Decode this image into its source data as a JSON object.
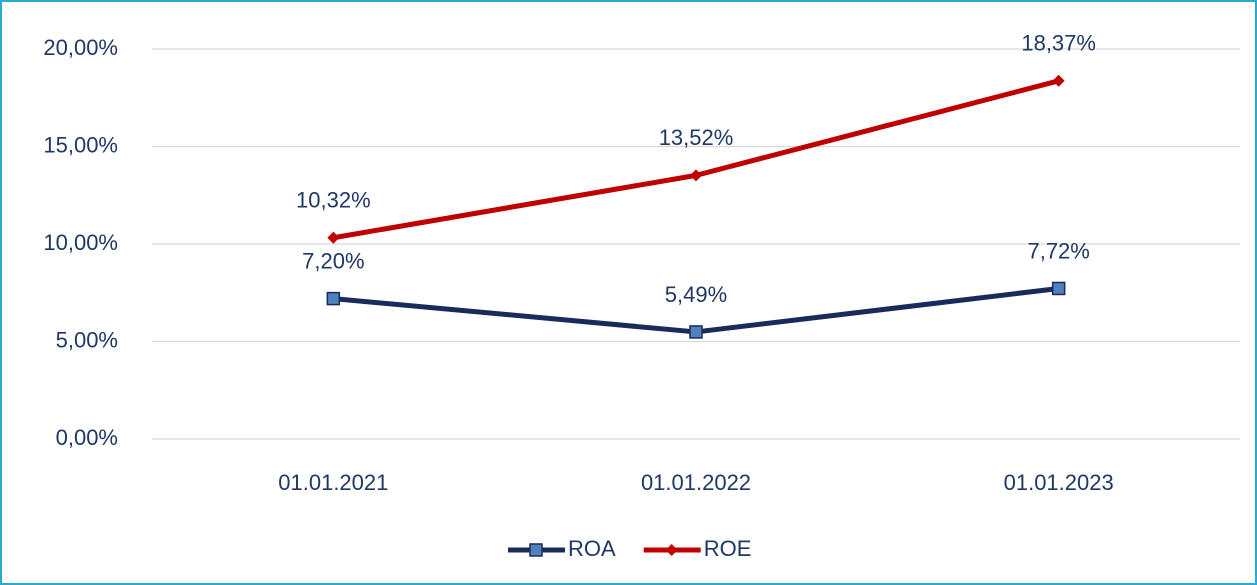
{
  "chart_data": {
    "type": "line",
    "categories": [
      "01.01.2021",
      "01.01.2022",
      "01.01.2023"
    ],
    "series": [
      {
        "name": "ROA",
        "color": "#1b2a5c",
        "marker_color": "#4f81bd",
        "marker": "square",
        "values": [
          7.2,
          5.49,
          7.72
        ],
        "value_labels": [
          "7,20%",
          "5,49%",
          "7,72%"
        ]
      },
      {
        "name": "ROE",
        "color": "#c00000",
        "marker_color": "#c00000",
        "marker": "diamond",
        "values": [
          10.32,
          13.52,
          18.37
        ],
        "value_labels": [
          "10,32%",
          "13,52%",
          "18,37%"
        ]
      }
    ],
    "ylim": [
      0,
      20
    ],
    "yticks": [
      {
        "value": 0,
        "label": "0,00%"
      },
      {
        "value": 5,
        "label": "5,00%"
      },
      {
        "value": 10,
        "label": "10,00%"
      },
      {
        "value": 15,
        "label": "15,00%"
      },
      {
        "value": 20,
        "label": "20,00%"
      }
    ],
    "grid": true,
    "legend": "bottom"
  }
}
